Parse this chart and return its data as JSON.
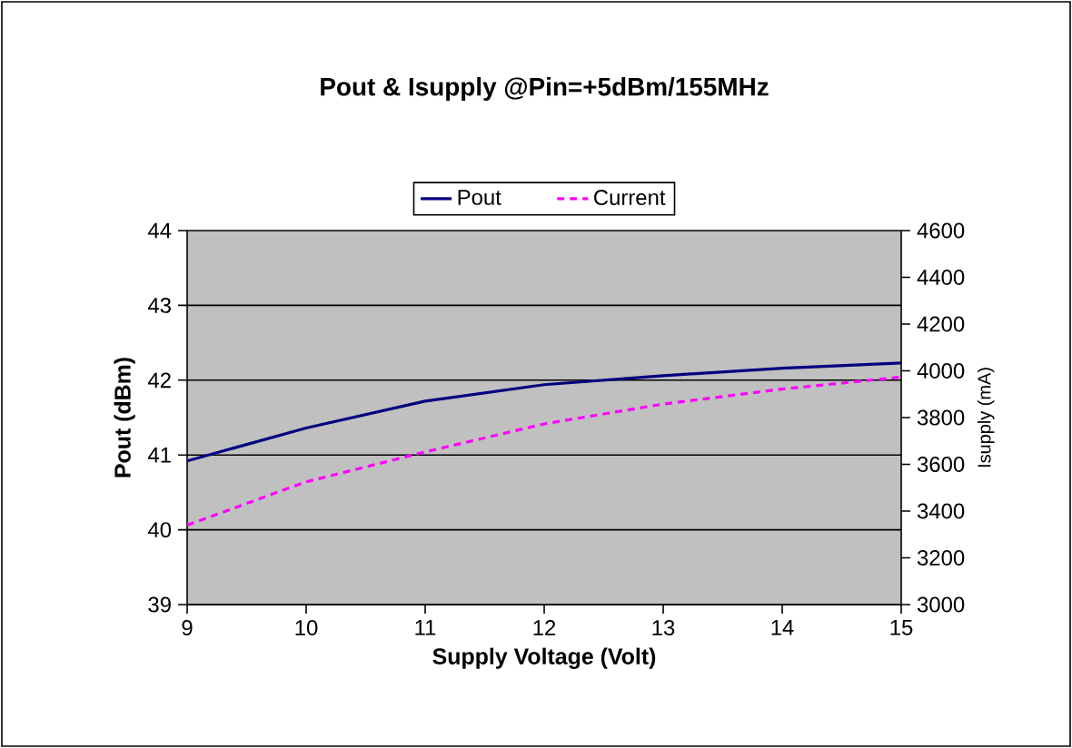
{
  "chart_data": {
    "type": "line",
    "title": "Pout & Isupply @Pin=+5dBm/155MHz",
    "xlabel": "Supply Voltage  (Volt)",
    "ylabel": "Pout (dBm)",
    "y2label": "Isupply (mA)",
    "x": [
      9,
      10,
      11,
      12,
      13,
      14,
      15
    ],
    "series": [
      {
        "name": "Pout",
        "color": "#000080",
        "line_style": "solid",
        "values": [
          40.92,
          41.36,
          41.72,
          41.94,
          42.06,
          42.16,
          42.23
        ]
      },
      {
        "name": "Current",
        "color": "#ff00ff",
        "line_style": "dashed",
        "axis": "y2",
        "values": [
          3340,
          3525,
          3653,
          3773,
          3858,
          3922,
          3973
        ]
      }
    ],
    "xlim": [
      9,
      15
    ],
    "xticks": [
      9,
      10,
      11,
      12,
      13,
      14,
      15
    ],
    "ylim": [
      39,
      44
    ],
    "yticks": [
      39,
      40,
      41,
      42,
      43,
      44
    ],
    "y2lim": [
      3000,
      4600
    ],
    "y2ticks": [
      3000,
      3200,
      3400,
      3600,
      3800,
      4000,
      4200,
      4400,
      4600
    ],
    "grid": "y",
    "legend": "top",
    "marker": "none"
  }
}
